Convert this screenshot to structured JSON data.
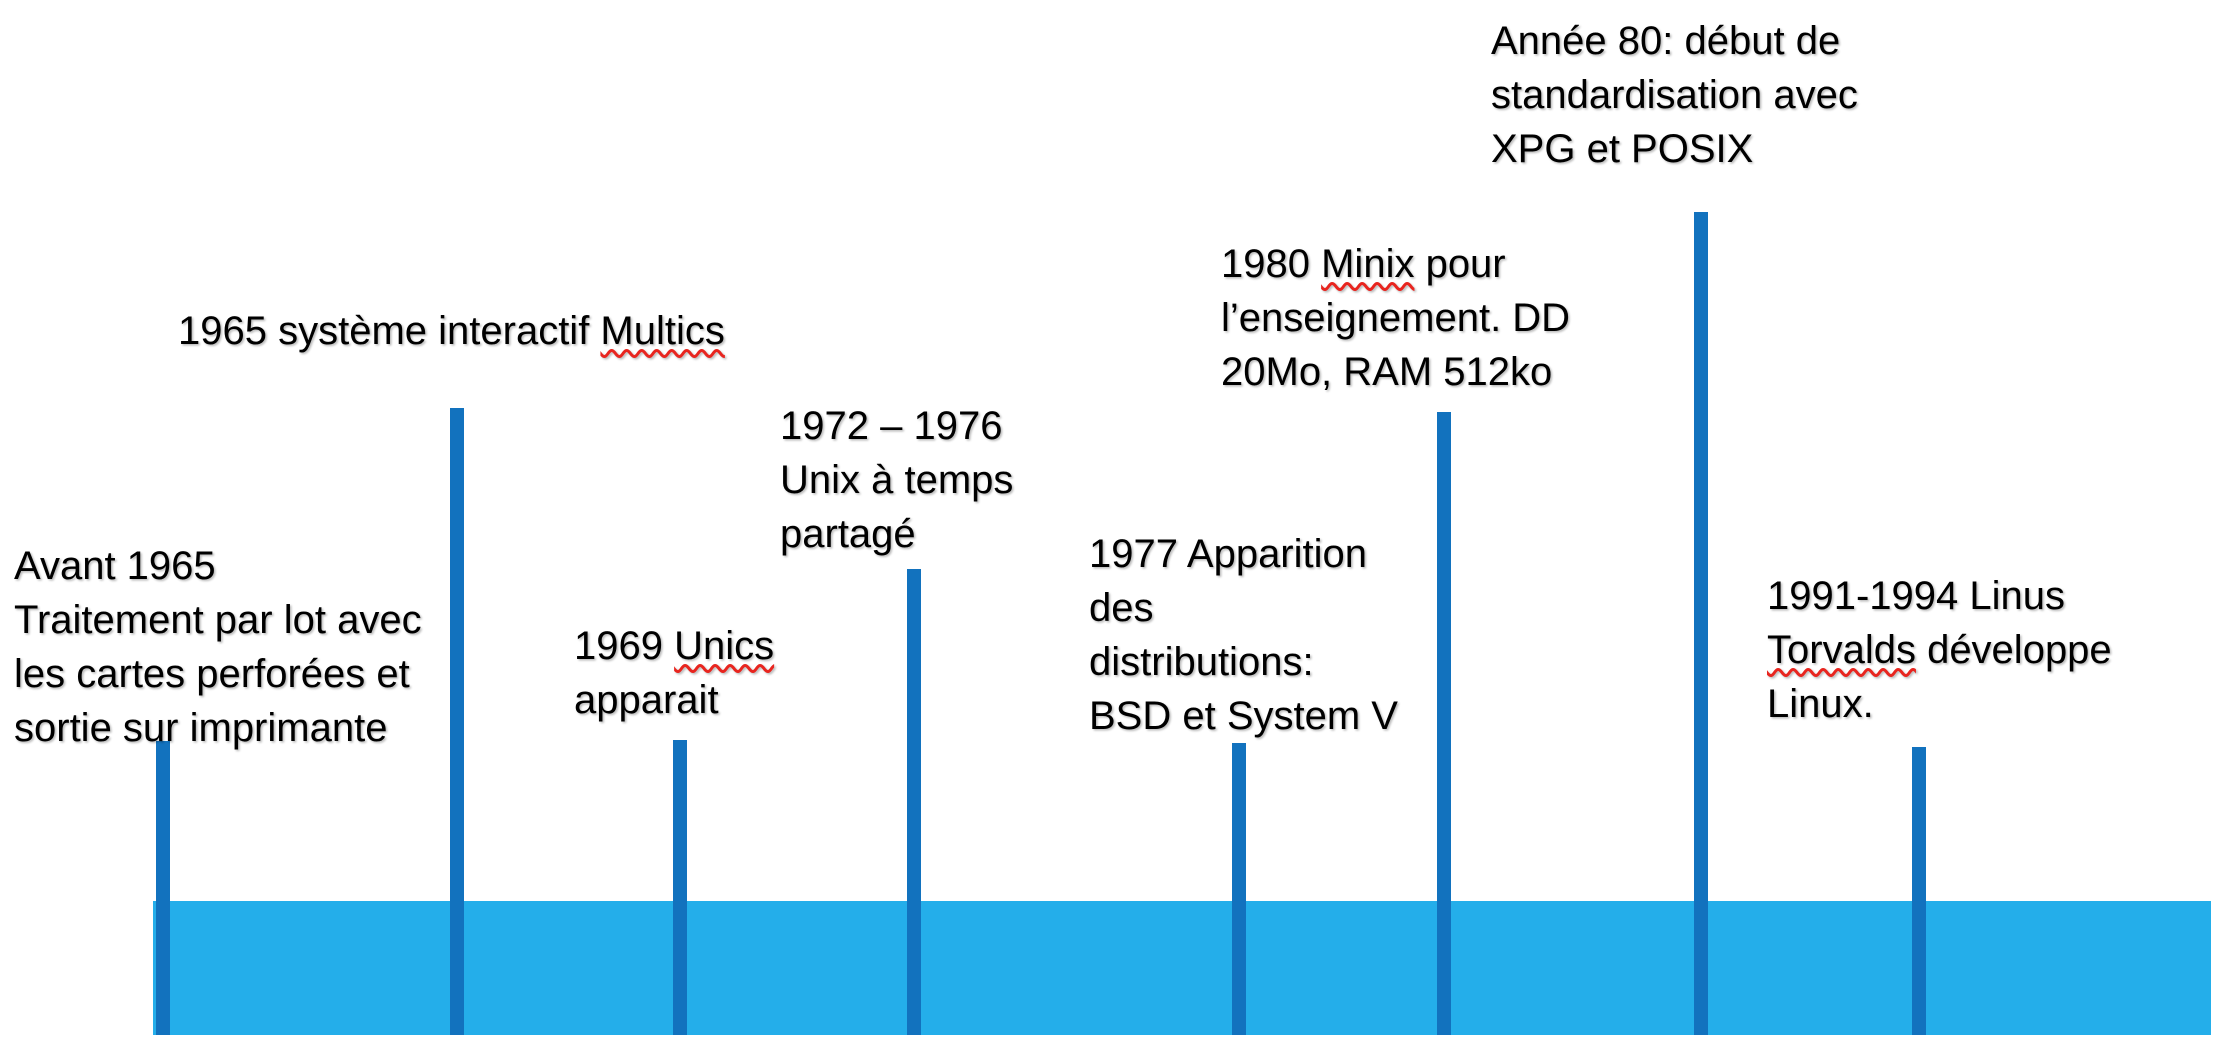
{
  "diagram": {
    "type": "timeline",
    "subject": "Histoire d'Unix / Linux",
    "colors": {
      "timeline_band": "#24aeea",
      "event_tick": "#1272be",
      "spellcheck_underline": "#e8251f",
      "text": "#000000",
      "background": "#ffffff"
    },
    "events": [
      {
        "id": "avant-1965",
        "lines": [
          [
            {
              "t": "Avant 1965"
            }
          ],
          [
            {
              "t": "Traitement par lot avec"
            }
          ],
          [
            {
              "t": "les cartes perforées et"
            }
          ],
          [
            {
              "t": "sortie sur imprimante"
            }
          ]
        ]
      },
      {
        "id": "1965-multics",
        "lines": [
          [
            {
              "t": "1965 système interactif "
            },
            {
              "t": "Multics",
              "misspelled": true
            }
          ]
        ]
      },
      {
        "id": "1969-unics",
        "lines": [
          [
            {
              "t": "1969 "
            },
            {
              "t": "Unics",
              "misspelled": true
            }
          ],
          [
            {
              "t": "apparait"
            }
          ]
        ]
      },
      {
        "id": "1972-1976-unix",
        "lines": [
          [
            {
              "t": "1972 – 1976"
            }
          ],
          [
            {
              "t": "Unix à temps"
            }
          ],
          [
            {
              "t": "partagé"
            }
          ]
        ]
      },
      {
        "id": "1977-distributions",
        "lines": [
          [
            {
              "t": "1977 Apparition"
            }
          ],
          [
            {
              "t": "des"
            }
          ],
          [
            {
              "t": "distributions:"
            }
          ],
          [
            {
              "t": "BSD et System V"
            }
          ]
        ]
      },
      {
        "id": "1980-minix",
        "lines": [
          [
            {
              "t": "1980 "
            },
            {
              "t": "Minix",
              "misspelled": true
            },
            {
              "t": " pour"
            }
          ],
          [
            {
              "t": "l’enseignement. DD"
            }
          ],
          [
            {
              "t": "20Mo, RAM 512ko"
            }
          ]
        ]
      },
      {
        "id": "annee-80-posix",
        "lines": [
          [
            {
              "t": "Année 80: début de"
            }
          ],
          [
            {
              "t": "standardisation avec"
            }
          ],
          [
            {
              "t": "XPG et POSIX"
            }
          ]
        ]
      },
      {
        "id": "1991-1994-linux",
        "lines": [
          [
            {
              "t": "1991-1994 Linus"
            }
          ],
          [
            {
              "t": "Torvalds",
              "misspelled": true
            },
            {
              "t": " développe"
            }
          ],
          [
            {
              "t": "Linux."
            }
          ]
        ]
      }
    ]
  }
}
